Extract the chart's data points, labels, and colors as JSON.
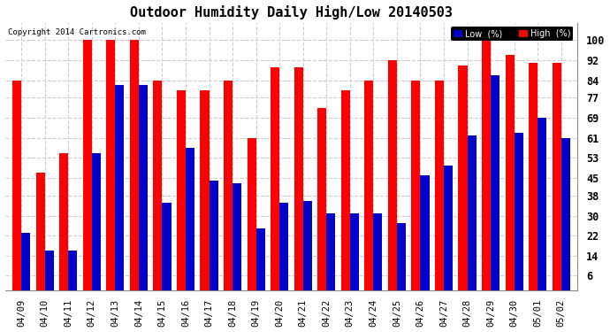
{
  "title": "Outdoor Humidity Daily High/Low 20140503",
  "copyright": "Copyright 2014 Cartronics.com",
  "dates": [
    "04/09",
    "04/10",
    "04/11",
    "04/12",
    "04/13",
    "04/14",
    "04/15",
    "04/16",
    "04/17",
    "04/18",
    "04/19",
    "04/20",
    "04/21",
    "04/22",
    "04/23",
    "04/24",
    "04/25",
    "04/26",
    "04/27",
    "04/28",
    "04/29",
    "04/30",
    "05/01",
    "05/02"
  ],
  "high": [
    84,
    47,
    55,
    100,
    100,
    100,
    84,
    80,
    80,
    84,
    61,
    89,
    89,
    73,
    80,
    84,
    92,
    84,
    84,
    90,
    100,
    94,
    91,
    91
  ],
  "low": [
    23,
    16,
    16,
    55,
    82,
    82,
    35,
    57,
    44,
    43,
    25,
    35,
    36,
    31,
    31,
    31,
    27,
    46,
    50,
    62,
    86,
    63,
    69,
    61
  ],
  "high_color": "#ff0000",
  "low_color": "#0000cc",
  "bg_color": "#ffffff",
  "grid_color": "#cccccc",
  "yticks": [
    6,
    14,
    22,
    30,
    38,
    45,
    53,
    61,
    69,
    77,
    84,
    92,
    100
  ],
  "ylim": [
    0,
    107
  ],
  "bar_width": 0.38,
  "figsize": [
    6.9,
    3.75
  ],
  "dpi": 100
}
